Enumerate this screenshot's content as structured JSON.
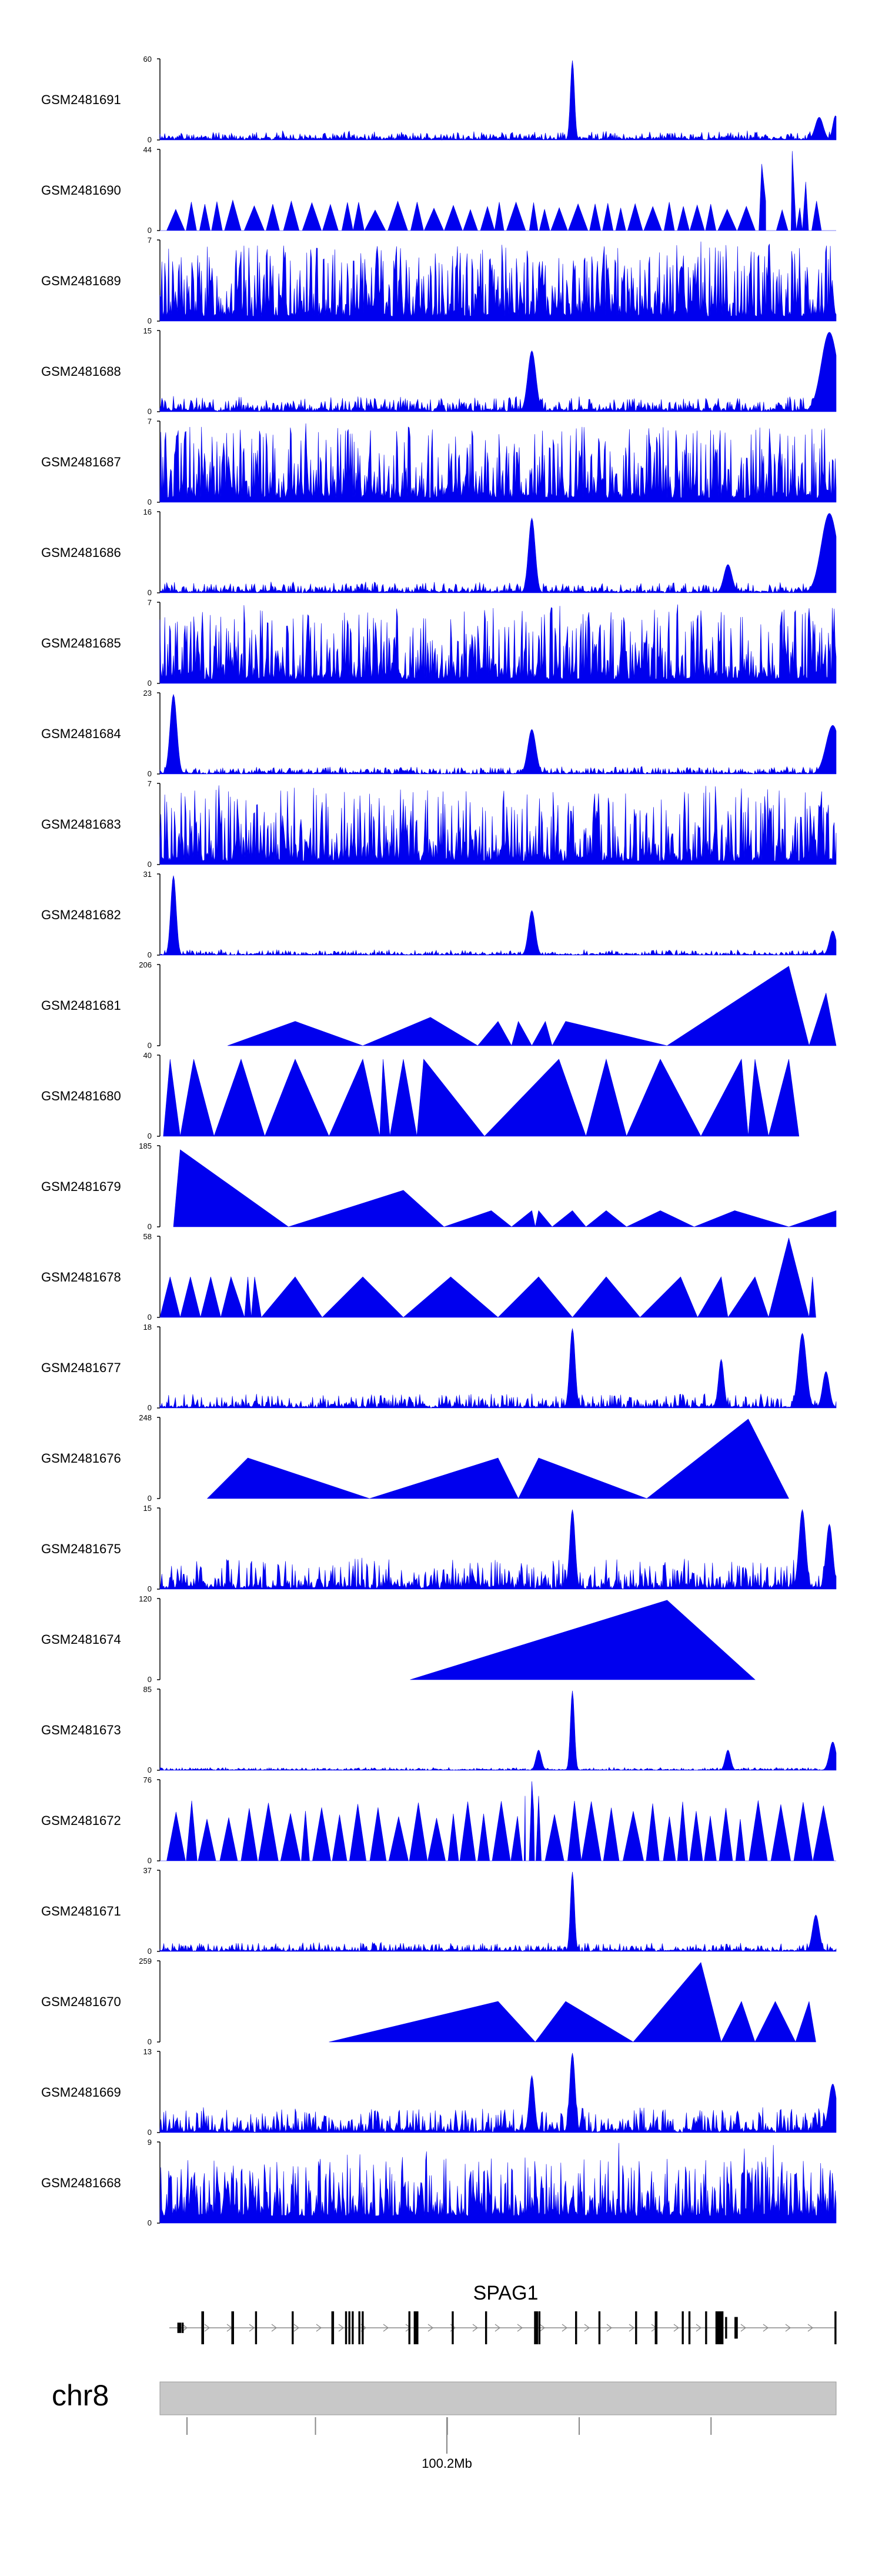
{
  "chart_data": {
    "type": "area",
    "description_of_view": "Genome browser coverage tracks",
    "colors": {
      "signal": "#0000ee",
      "axis": "#000000",
      "ideogram": "#c8c8c8",
      "gene": "#000000",
      "intron": "#888888"
    },
    "tracks": [
      {
        "name": "GSM2481691",
        "ymax": 60,
        "ymin": 0,
        "style": "noisy",
        "base": 0.07,
        "noise": 0.09,
        "seed": 11,
        "peaks": [
          [
            0.61,
            0.98,
            0.003
          ],
          [
            0.975,
            0.28,
            0.006
          ],
          [
            0.999,
            0.3,
            0.004
          ]
        ]
      },
      {
        "name": "GSM2481690",
        "ymax": 44,
        "ymin": 0,
        "style": "spiky_tri",
        "base": 0.25,
        "noise": 0.1,
        "seed": 12,
        "peaks": [
          [
            0.935,
            0.98,
            0.006
          ],
          [
            0.89,
            0.82,
            0.006
          ],
          [
            0.955,
            0.6,
            0.005
          ]
        ]
      },
      {
        "name": "GSM2481689",
        "ymax": 7,
        "ymin": 0,
        "style": "dense",
        "base": 0.2,
        "noise": 0.55,
        "seed": 13,
        "peaks": []
      },
      {
        "name": "GSM2481688",
        "ymax": 15,
        "ymin": 0,
        "style": "noisy",
        "base": 0.1,
        "noise": 0.16,
        "seed": 14,
        "peaks": [
          [
            0.55,
            0.75,
            0.006
          ],
          [
            0.99,
            0.98,
            0.012
          ]
        ]
      },
      {
        "name": "GSM2481687",
        "ymax": 7,
        "ymin": 0,
        "style": "dense",
        "base": 0.18,
        "noise": 0.55,
        "seed": 15,
        "peaks": []
      },
      {
        "name": "GSM2481686",
        "ymax": 16,
        "ymin": 0,
        "style": "noisy",
        "base": 0.06,
        "noise": 0.12,
        "seed": 16,
        "peaks": [
          [
            0.55,
            0.92,
            0.005
          ],
          [
            0.99,
            0.98,
            0.012
          ],
          [
            0.84,
            0.35,
            0.006
          ]
        ]
      },
      {
        "name": "GSM2481685",
        "ymax": 7,
        "ymin": 0,
        "style": "dense",
        "base": 0.18,
        "noise": 0.55,
        "seed": 17,
        "peaks": []
      },
      {
        "name": "GSM2481684",
        "ymax": 23,
        "ymin": 0,
        "style": "noisy",
        "base": 0.04,
        "noise": 0.08,
        "seed": 18,
        "peaks": [
          [
            0.02,
            0.98,
            0.005
          ],
          [
            0.55,
            0.55,
            0.006
          ],
          [
            0.995,
            0.6,
            0.01
          ]
        ]
      },
      {
        "name": "GSM2481683",
        "ymax": 7,
        "ymin": 0,
        "style": "dense",
        "base": 0.15,
        "noise": 0.55,
        "seed": 19,
        "peaks": []
      },
      {
        "name": "GSM2481682",
        "ymax": 31,
        "ymin": 0,
        "style": "noisy",
        "base": 0.03,
        "noise": 0.06,
        "seed": 20,
        "peaks": [
          [
            0.02,
            0.98,
            0.004
          ],
          [
            0.55,
            0.55,
            0.005
          ],
          [
            0.995,
            0.3,
            0.005
          ]
        ]
      },
      {
        "name": "GSM2481681",
        "ymax": 206,
        "ymin": 0,
        "style": "triangles",
        "seed": 21,
        "peaks": [
          [
            0.1,
            0.0
          ],
          [
            0.2,
            0.3
          ],
          [
            0.3,
            0.0
          ],
          [
            0.4,
            0.35
          ],
          [
            0.47,
            0.0
          ],
          [
            0.5,
            0.3
          ],
          [
            0.52,
            0.0
          ],
          [
            0.53,
            0.3
          ],
          [
            0.55,
            0.0
          ],
          [
            0.57,
            0.3
          ],
          [
            0.58,
            0.0
          ],
          [
            0.6,
            0.3
          ],
          [
            0.75,
            0.0
          ],
          [
            0.93,
            0.98
          ],
          [
            0.96,
            0.0
          ],
          [
            0.985,
            0.65
          ],
          [
            1.0,
            0.0
          ]
        ]
      },
      {
        "name": "GSM2481680",
        "ymax": 40,
        "ymin": 0,
        "style": "triangles",
        "seed": 22,
        "peaks": [
          [
            0.005,
            0.0
          ],
          [
            0.015,
            0.95
          ],
          [
            0.03,
            0.0
          ],
          [
            0.05,
            0.95
          ],
          [
            0.08,
            0.0
          ],
          [
            0.12,
            0.95
          ],
          [
            0.155,
            0.0
          ],
          [
            0.2,
            0.95
          ],
          [
            0.25,
            0.0
          ],
          [
            0.3,
            0.95
          ],
          [
            0.325,
            0.0
          ],
          [
            0.33,
            0.95
          ],
          [
            0.34,
            0.0
          ],
          [
            0.36,
            0.95
          ],
          [
            0.38,
            0.0
          ],
          [
            0.39,
            0.95
          ],
          [
            0.48,
            0.0
          ],
          [
            0.59,
            0.95
          ],
          [
            0.63,
            0.0
          ],
          [
            0.66,
            0.95
          ],
          [
            0.69,
            0.0
          ],
          [
            0.74,
            0.95
          ],
          [
            0.8,
            0.0
          ],
          [
            0.86,
            0.95
          ],
          [
            0.87,
            0.0
          ],
          [
            0.88,
            0.95
          ],
          [
            0.9,
            0.0
          ],
          [
            0.93,
            0.95
          ],
          [
            0.945,
            0.0
          ]
        ]
      },
      {
        "name": "GSM2481679",
        "ymax": 185,
        "ymin": 0,
        "style": "triangles",
        "seed": 23,
        "peaks": [
          [
            0.02,
            0.0
          ],
          [
            0.03,
            0.95
          ],
          [
            0.19,
            0.0
          ],
          [
            0.36,
            0.45
          ],
          [
            0.42,
            0.0
          ],
          [
            0.49,
            0.2
          ],
          [
            0.52,
            0.0
          ],
          [
            0.55,
            0.2
          ],
          [
            0.555,
            0.0
          ],
          [
            0.56,
            0.2
          ],
          [
            0.58,
            0.0
          ],
          [
            0.61,
            0.2
          ],
          [
            0.63,
            0.0
          ],
          [
            0.66,
            0.2
          ],
          [
            0.69,
            0.0
          ],
          [
            0.74,
            0.2
          ],
          [
            0.79,
            0.0
          ],
          [
            0.85,
            0.2
          ],
          [
            0.93,
            0.0
          ],
          [
            1.0,
            0.2
          ]
        ]
      },
      {
        "name": "GSM2481678",
        "ymax": 58,
        "ymin": 0,
        "style": "triangles",
        "seed": 24,
        "peaks": [
          [
            0.0,
            0.0
          ],
          [
            0.015,
            0.5
          ],
          [
            0.03,
            0.0
          ],
          [
            0.045,
            0.5
          ],
          [
            0.06,
            0.0
          ],
          [
            0.075,
            0.5
          ],
          [
            0.09,
            0.0
          ],
          [
            0.105,
            0.5
          ],
          [
            0.125,
            0.0
          ],
          [
            0.13,
            0.5
          ],
          [
            0.135,
            0.0
          ],
          [
            0.14,
            0.5
          ],
          [
            0.15,
            0.0
          ],
          [
            0.2,
            0.5
          ],
          [
            0.24,
            0.0
          ],
          [
            0.3,
            0.5
          ],
          [
            0.36,
            0.0
          ],
          [
            0.43,
            0.5
          ],
          [
            0.5,
            0.0
          ],
          [
            0.56,
            0.5
          ],
          [
            0.61,
            0.0
          ],
          [
            0.66,
            0.5
          ],
          [
            0.71,
            0.0
          ],
          [
            0.77,
            0.5
          ],
          [
            0.795,
            0.0
          ],
          [
            0.83,
            0.5
          ],
          [
            0.84,
            0.0
          ],
          [
            0.88,
            0.5
          ],
          [
            0.9,
            0.0
          ],
          [
            0.93,
            0.98
          ],
          [
            0.96,
            0.0
          ],
          [
            0.965,
            0.5
          ],
          [
            0.97,
            0.0
          ]
        ]
      },
      {
        "name": "GSM2481677",
        "ymax": 18,
        "ymin": 0,
        "style": "noisy",
        "base": 0.06,
        "noise": 0.16,
        "seed": 25,
        "peaks": [
          [
            0.61,
            0.98,
            0.004
          ],
          [
            0.95,
            0.92,
            0.006
          ],
          [
            0.83,
            0.6,
            0.004
          ],
          [
            0.985,
            0.45,
            0.005
          ]
        ]
      },
      {
        "name": "GSM2481676",
        "ymax": 248,
        "ymin": 0,
        "style": "triangles",
        "seed": 26,
        "peaks": [
          [
            0.07,
            0.0
          ],
          [
            0.13,
            0.5
          ],
          [
            0.31,
            0.0
          ],
          [
            0.5,
            0.5
          ],
          [
            0.53,
            0.0
          ],
          [
            0.56,
            0.5
          ],
          [
            0.72,
            0.0
          ],
          [
            0.87,
            0.98
          ],
          [
            0.93,
            0.0
          ]
        ]
      },
      {
        "name": "GSM2481675",
        "ymax": 15,
        "ymin": 0,
        "style": "noisy",
        "base": 0.1,
        "noise": 0.35,
        "seed": 27,
        "peaks": [
          [
            0.61,
            0.98,
            0.004
          ],
          [
            0.95,
            0.98,
            0.005
          ],
          [
            0.99,
            0.8,
            0.005
          ]
        ]
      },
      {
        "name": "GSM2481674",
        "ymax": 120,
        "ymin": 0,
        "style": "triangles",
        "seed": 28,
        "peaks": [
          [
            0.37,
            0.0
          ],
          [
            0.75,
            0.98
          ],
          [
            0.88,
            0.0
          ]
        ]
      },
      {
        "name": "GSM2481673",
        "ymax": 85,
        "ymin": 0,
        "style": "noisy",
        "base": 0.02,
        "noise": 0.03,
        "seed": 29,
        "peaks": [
          [
            0.61,
            0.98,
            0.003
          ],
          [
            0.56,
            0.25,
            0.004
          ],
          [
            0.84,
            0.25,
            0.004
          ],
          [
            0.995,
            0.35,
            0.005
          ]
        ]
      },
      {
        "name": "GSM2481672",
        "ymax": 76,
        "ymin": 0,
        "style": "spiky_tri",
        "base": 0.5,
        "noise": 0.05,
        "seed": 30,
        "peaks": [
          [
            0.55,
            0.98,
            0.004
          ],
          [
            0.54,
            0.8,
            0.004
          ],
          [
            0.56,
            0.8,
            0.004
          ]
        ]
      },
      {
        "name": "GSM2481671",
        "ymax": 37,
        "ymin": 0,
        "style": "noisy",
        "base": 0.04,
        "noise": 0.1,
        "seed": 31,
        "peaks": [
          [
            0.61,
            0.98,
            0.003
          ],
          [
            0.97,
            0.45,
            0.005
          ]
        ]
      },
      {
        "name": "GSM2481670",
        "ymax": 259,
        "ymin": 0,
        "style": "triangles",
        "seed": 32,
        "peaks": [
          [
            0.25,
            0.0
          ],
          [
            0.5,
            0.5
          ],
          [
            0.555,
            0.0
          ],
          [
            0.6,
            0.5
          ],
          [
            0.7,
            0.0
          ],
          [
            0.8,
            0.98
          ],
          [
            0.83,
            0.0
          ],
          [
            0.86,
            0.5
          ],
          [
            0.88,
            0.0
          ],
          [
            0.91,
            0.5
          ],
          [
            0.94,
            0.0
          ],
          [
            0.96,
            0.5
          ],
          [
            0.97,
            0.0
          ]
        ]
      },
      {
        "name": "GSM2481669",
        "ymax": 13,
        "ymin": 0,
        "style": "noisy",
        "base": 0.1,
        "noise": 0.28,
        "seed": 33,
        "peaks": [
          [
            0.61,
            0.98,
            0.004
          ],
          [
            0.55,
            0.7,
            0.004
          ],
          [
            0.995,
            0.6,
            0.006
          ]
        ]
      },
      {
        "name": "GSM2481668",
        "ymax": 9,
        "ymin": 0,
        "style": "dense",
        "base": 0.3,
        "noise": 0.45,
        "seed": 34,
        "peaks": []
      }
    ],
    "gene": {
      "name": "SPAG1",
      "exons": [
        [
          0.015,
          0.006,
          0.2
        ],
        [
          0.02,
          0.003,
          0.2
        ],
        [
          0.05,
          0.004,
          1
        ],
        [
          0.095,
          0.004,
          1
        ],
        [
          0.13,
          0.003,
          1
        ],
        [
          0.185,
          0.003,
          1
        ],
        [
          0.245,
          0.004,
          1
        ],
        [
          0.265,
          0.003,
          1
        ],
        [
          0.27,
          0.003,
          1
        ],
        [
          0.275,
          0.003,
          1
        ],
        [
          0.285,
          0.003,
          1
        ],
        [
          0.29,
          0.003,
          1
        ],
        [
          0.36,
          0.003,
          1
        ],
        [
          0.37,
          0.007,
          1
        ],
        [
          0.425,
          0.003,
          1
        ],
        [
          0.475,
          0.003,
          1
        ],
        [
          0.55,
          0.006,
          1
        ],
        [
          0.555,
          0.003,
          1
        ],
        [
          0.61,
          0.003,
          1
        ],
        [
          0.645,
          0.003,
          1
        ],
        [
          0.7,
          0.003,
          1
        ],
        [
          0.73,
          0.004,
          1
        ],
        [
          0.77,
          0.003,
          1
        ],
        [
          0.78,
          0.003,
          1
        ],
        [
          0.805,
          0.003,
          1
        ],
        [
          0.825,
          0.012,
          1
        ],
        [
          0.835,
          0.003,
          0.6
        ],
        [
          0.85,
          0.005,
          0.6
        ],
        [
          0.999,
          0.003,
          1
        ]
      ]
    },
    "chromosome": {
      "name": "chr8",
      "position_label": "100.2Mb",
      "ticks": [
        0.04,
        0.23,
        0.425,
        0.62,
        0.815
      ]
    }
  }
}
